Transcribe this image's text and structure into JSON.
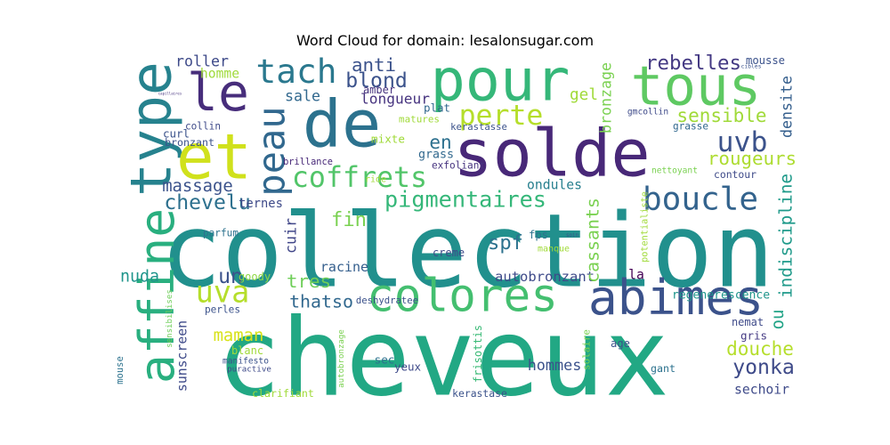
{
  "chart_data": {
    "type": "wordcloud",
    "title": "Word Cloud for domain: lesalonsugar.com",
    "words": [
      {
        "text": "cheveux",
        "color": "#22a884"
      },
      {
        "text": "collection",
        "color": "#21908d"
      },
      {
        "text": "solde",
        "color": "#482878"
      },
      {
        "text": "pour",
        "color": "#35b779"
      },
      {
        "text": "de",
        "color": "#2c728e"
      },
      {
        "text": "abimes",
        "color": "#3b528b"
      },
      {
        "text": "tous",
        "color": "#5ec962"
      },
      {
        "text": "type",
        "color": "#26828e"
      },
      {
        "text": "affine",
        "color": "#29af7f"
      },
      {
        "text": "et",
        "color": "#d0e11c"
      },
      {
        "text": "le",
        "color": "#472d7b"
      },
      {
        "text": "colores",
        "color": "#44bf70"
      },
      {
        "text": "peau",
        "color": "#31688e"
      },
      {
        "text": "coffrets",
        "color": "#52c569"
      },
      {
        "text": "boucle",
        "color": "#33638d"
      },
      {
        "text": "tach",
        "color": "#2a788e"
      },
      {
        "text": "perte",
        "color": "#b5de2b"
      },
      {
        "text": "uva",
        "color": "#b5de2b"
      },
      {
        "text": "uvb",
        "color": "#3b528b"
      },
      {
        "text": "pigmentaires",
        "color": "#35b779"
      },
      {
        "text": "rebelles",
        "color": "#443983"
      },
      {
        "text": "sensible",
        "color": "#a0da39"
      },
      {
        "text": "rougeurs",
        "color": "#addc30"
      },
      {
        "text": "densite",
        "color": "#355f8d"
      },
      {
        "text": "indiscipline",
        "color": "#1f9a8a"
      },
      {
        "text": "yonka",
        "color": "#3e4a89"
      },
      {
        "text": "douche",
        "color": "#b5de2b"
      },
      {
        "text": "sechoir",
        "color": "#3e4a89"
      },
      {
        "text": "autobronzant",
        "color": "#3e4a89"
      },
      {
        "text": "cassants",
        "color": "#7ad151"
      },
      {
        "text": "bronzage",
        "color": "#7ad151"
      },
      {
        "text": "anti",
        "color": "#3b528b"
      },
      {
        "text": "blond",
        "color": "#3b528b"
      },
      {
        "text": "longueur",
        "color": "#46337f"
      },
      {
        "text": "roller",
        "color": "#3e4a89"
      },
      {
        "text": "homme",
        "color": "#9fda3a"
      },
      {
        "text": "sale",
        "color": "#31688e"
      },
      {
        "text": "gel",
        "color": "#a0da39"
      },
      {
        "text": "en",
        "color": "#2d708e"
      },
      {
        "text": "grass",
        "color": "#31688e"
      },
      {
        "text": "massage",
        "color": "#3b528b"
      },
      {
        "text": "chevelu",
        "color": "#2d708e"
      },
      {
        "text": "ternes",
        "color": "#3e4a89"
      },
      {
        "text": "fin",
        "color": "#7ad151"
      },
      {
        "text": "cuir",
        "color": "#404688"
      },
      {
        "text": "racine",
        "color": "#355f8d"
      },
      {
        "text": "spf",
        "color": "#2c728e"
      },
      {
        "text": "ondules",
        "color": "#277f8e"
      },
      {
        "text": "un",
        "color": "#3b528b"
      },
      {
        "text": "tres",
        "color": "#6ece58"
      },
      {
        "text": "thatso",
        "color": "#31688e"
      },
      {
        "text": "nuda",
        "color": "#1f958b"
      },
      {
        "text": "maman",
        "color": "#d8e219"
      },
      {
        "text": "sunscreen",
        "color": "#3e4a89"
      },
      {
        "text": "hommes",
        "color": "#3b528b"
      },
      {
        "text": "frisottis",
        "color": "#3aba76"
      },
      {
        "text": "regenerescence",
        "color": "#1f958b"
      },
      {
        "text": "ou",
        "color": "#20a386"
      },
      {
        "text": "la",
        "color": "#440154"
      },
      {
        "text": "gris",
        "color": "#443983"
      },
      {
        "text": "plat",
        "color": "#31688e"
      },
      {
        "text": "matures",
        "color": "#a0da39"
      },
      {
        "text": "kerastasse",
        "color": "#3b528b"
      },
      {
        "text": "mixte",
        "color": "#a0da39"
      },
      {
        "text": "exfoliant",
        "color": "#46337f"
      },
      {
        "text": "brillance",
        "color": "#482878"
      },
      {
        "text": "collin",
        "color": "#3e4a89"
      },
      {
        "text": "curl",
        "color": "#3b528b"
      },
      {
        "text": "bronzant",
        "color": "#3b528b"
      },
      {
        "text": "amber",
        "color": "#46337f"
      },
      {
        "text": "gmcollin",
        "color": "#3e4a89"
      },
      {
        "text": "grasse",
        "color": "#31688e"
      },
      {
        "text": "nettoyant",
        "color": "#7ad151"
      },
      {
        "text": "contour",
        "color": "#3e4a89"
      },
      {
        "text": "mousse",
        "color": "#3b528b"
      },
      {
        "text": "fps",
        "color": "#2c728e"
      },
      {
        "text": "manque",
        "color": "#a0da39"
      },
      {
        "text": "creme",
        "color": "#3e4a89"
      },
      {
        "text": "potentialiste",
        "color": "#a0da39"
      },
      {
        "text": "ride",
        "color": "#a0da39"
      },
      {
        "text": "parfum",
        "color": "#2c728e"
      },
      {
        "text": "goody",
        "color": "#8fd744"
      },
      {
        "text": "deshydratee",
        "color": "#3b528b"
      },
      {
        "text": "sensibilises",
        "color": "#6ece58"
      },
      {
        "text": "perles",
        "color": "#3b528b"
      },
      {
        "text": "blanc",
        "color": "#a0da39"
      },
      {
        "text": "manifesto",
        "color": "#3b528b"
      },
      {
        "text": "puractive",
        "color": "#3e4a89"
      },
      {
        "text": "autobronzage",
        "color": "#7ad151"
      },
      {
        "text": "sec",
        "color": "#2c728e"
      },
      {
        "text": "yeux",
        "color": "#3e4a89"
      },
      {
        "text": "solaire",
        "color": "#7ad151"
      },
      {
        "text": "age",
        "color": "#3b528b"
      },
      {
        "text": "nemat",
        "color": "#3e4a89"
      },
      {
        "text": "gant",
        "color": "#2c728e"
      },
      {
        "text": "mouse",
        "color": "#2c728e"
      },
      {
        "text": "clarifiant",
        "color": "#a0da39"
      },
      {
        "text": "kerastase",
        "color": "#3b528b"
      },
      {
        "text": "capillaires",
        "color": "#46337f"
      },
      {
        "text": "cibles",
        "color": "#3b528b"
      },
      {
        "text": "soin",
        "color": "#3b528b"
      }
    ]
  }
}
